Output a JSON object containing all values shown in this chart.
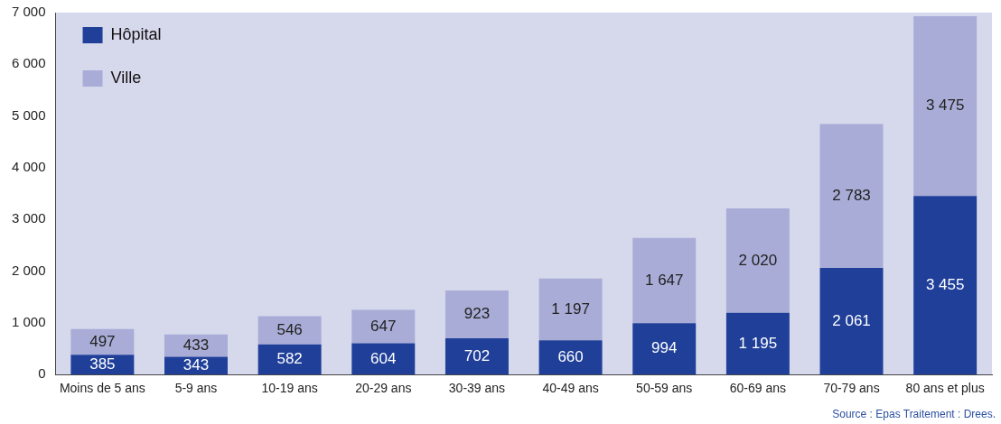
{
  "chart_data": {
    "type": "bar",
    "stacked": true,
    "categories": [
      "Moins de 5 ans",
      "5-9 ans",
      "10-19 ans",
      "20-29 ans",
      "30-39 ans",
      "40-49 ans",
      "50-59 ans",
      "60-69 ans",
      "70-79 ans",
      "80 ans et plus"
    ],
    "series": [
      {
        "name": "Hôpital",
        "color": "#1f3f99",
        "values": [
          385,
          343,
          582,
          604,
          702,
          660,
          994,
          1195,
          2061,
          3455
        ],
        "value_labels": [
          "385",
          "343",
          "582",
          "604",
          "702",
          "660",
          "994",
          "1 195",
          "2 061",
          "3 455"
        ]
      },
      {
        "name": "Ville",
        "color": "#a9acd6",
        "values": [
          497,
          433,
          546,
          647,
          923,
          1197,
          1647,
          2020,
          2783,
          3475
        ],
        "value_labels": [
          "497",
          "433",
          "546",
          "647",
          "923",
          "1 197",
          "1 647",
          "2 020",
          "2 783",
          "3 475"
        ]
      }
    ],
    "ylim": [
      0,
      7000
    ],
    "yticks": [
      {
        "value": 0,
        "label": "0"
      },
      {
        "value": 1000,
        "label": "1 000"
      },
      {
        "value": 2000,
        "label": "2 000"
      },
      {
        "value": 3000,
        "label": "3 000"
      },
      {
        "value": 4000,
        "label": "4 000"
      },
      {
        "value": 5000,
        "label": "5 000"
      },
      {
        "value": 6000,
        "label": "6 000"
      },
      {
        "value": 7000,
        "label": "7 000"
      }
    ],
    "grid": false,
    "legend": "top left",
    "annotations": [
      "Source : Epas Traitement : Drees."
    ]
  }
}
